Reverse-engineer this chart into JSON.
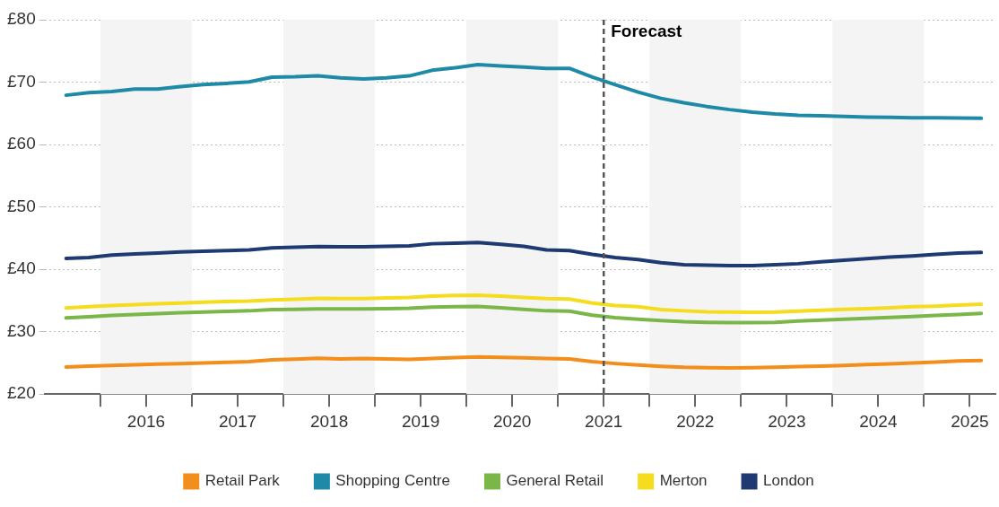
{
  "chart_data": {
    "type": "line",
    "x": [
      2015.625,
      2015.875,
      2016.125,
      2016.375,
      2016.625,
      2016.875,
      2017.125,
      2017.375,
      2017.625,
      2017.875,
      2018.125,
      2018.375,
      2018.625,
      2018.875,
      2019.125,
      2019.375,
      2019.625,
      2019.875,
      2020.125,
      2020.375,
      2020.625,
      2020.875,
      2021.125,
      2021.375,
      2021.625,
      2021.875,
      2022.125,
      2022.375,
      2022.625,
      2022.875,
      2023.125,
      2023.375,
      2023.625,
      2023.875,
      2024.125,
      2024.375,
      2024.625,
      2024.875,
      2025.125,
      2025.375,
      2025.625
    ],
    "series": [
      {
        "name": "Retail Park",
        "color": "#f28e1c",
        "values": [
          24.35,
          24.5,
          24.6,
          24.7,
          24.8,
          24.9,
          25.0,
          25.1,
          25.2,
          25.5,
          25.6,
          25.75,
          25.65,
          25.7,
          25.65,
          25.55,
          25.7,
          25.85,
          25.95,
          25.9,
          25.8,
          25.7,
          25.65,
          25.2,
          24.9,
          24.65,
          24.45,
          24.3,
          24.25,
          24.2,
          24.25,
          24.3,
          24.4,
          24.5,
          24.6,
          24.75,
          24.85,
          25.0,
          25.15,
          25.3,
          25.4
        ]
      },
      {
        "name": "Shopping Centre",
        "color": "#1f8aa8",
        "values": [
          67.9,
          68.3,
          68.5,
          68.9,
          68.9,
          69.3,
          69.6,
          69.8,
          70.05,
          70.8,
          70.85,
          71.0,
          70.7,
          70.5,
          70.7,
          71.0,
          71.9,
          72.3,
          72.8,
          72.6,
          72.4,
          72.2,
          72.2,
          70.8,
          69.6,
          68.4,
          67.4,
          66.7,
          66.1,
          65.6,
          65.2,
          64.9,
          64.7,
          64.6,
          64.5,
          64.4,
          64.35,
          64.3,
          64.3,
          64.25,
          64.2
        ]
      },
      {
        "name": "General Retail",
        "color": "#7ab648",
        "values": [
          32.2,
          32.4,
          32.6,
          32.75,
          32.9,
          33.05,
          33.15,
          33.25,
          33.35,
          33.55,
          33.6,
          33.65,
          33.65,
          33.65,
          33.7,
          33.75,
          33.95,
          34.0,
          34.05,
          33.85,
          33.6,
          33.35,
          33.3,
          32.65,
          32.25,
          32.0,
          31.8,
          31.6,
          31.5,
          31.45,
          31.45,
          31.5,
          31.7,
          31.85,
          32.0,
          32.15,
          32.3,
          32.45,
          32.6,
          32.75,
          32.95
        ]
      },
      {
        "name": "Merton",
        "color": "#f5dc1e",
        "values": [
          33.8,
          34.0,
          34.2,
          34.35,
          34.5,
          34.6,
          34.75,
          34.85,
          34.9,
          35.1,
          35.2,
          35.35,
          35.3,
          35.3,
          35.4,
          35.5,
          35.7,
          35.8,
          35.85,
          35.7,
          35.5,
          35.3,
          35.25,
          34.6,
          34.2,
          34.0,
          33.55,
          33.35,
          33.2,
          33.15,
          33.1,
          33.15,
          33.3,
          33.45,
          33.6,
          33.7,
          33.85,
          34.0,
          34.1,
          34.25,
          34.4
        ]
      },
      {
        "name": "London",
        "color": "#1f3a73",
        "values": [
          41.75,
          41.9,
          42.3,
          42.45,
          42.6,
          42.8,
          42.9,
          43.0,
          43.1,
          43.45,
          43.55,
          43.65,
          43.6,
          43.6,
          43.7,
          43.75,
          44.1,
          44.2,
          44.3,
          44.0,
          43.7,
          43.1,
          43.0,
          42.4,
          41.9,
          41.55,
          41.05,
          40.75,
          40.65,
          40.6,
          40.6,
          40.75,
          40.9,
          41.2,
          41.45,
          41.7,
          41.95,
          42.15,
          42.4,
          42.6,
          42.7
        ]
      }
    ],
    "xlim": [
      2015.39,
      2025.78
    ],
    "xticks": [
      {
        "value": 2016,
        "label": null
      },
      {
        "value": 2016.5,
        "label": "2016"
      },
      {
        "value": 2017,
        "label": null
      },
      {
        "value": 2017.5,
        "label": "2017"
      },
      {
        "value": 2018,
        "label": null
      },
      {
        "value": 2018.5,
        "label": "2018"
      },
      {
        "value": 2019,
        "label": null
      },
      {
        "value": 2019.5,
        "label": "2019"
      },
      {
        "value": 2020,
        "label": null
      },
      {
        "value": 2020.5,
        "label": "2020"
      },
      {
        "value": 2021,
        "label": null
      },
      {
        "value": 2021.5,
        "label": "2021"
      },
      {
        "value": 2022,
        "label": null
      },
      {
        "value": 2022.5,
        "label": "2022"
      },
      {
        "value": 2023,
        "label": null
      },
      {
        "value": 2023.5,
        "label": "2023"
      },
      {
        "value": 2024,
        "label": null
      },
      {
        "value": 2024.5,
        "label": "2024"
      },
      {
        "value": 2025,
        "label": null
      },
      {
        "value": 2025.5,
        "label": "2025"
      }
    ],
    "ylim": [
      20,
      80
    ],
    "yticks": [
      {
        "value": 20,
        "label": "£20"
      },
      {
        "value": 30,
        "label": "£30"
      },
      {
        "value": 40,
        "label": "£40"
      },
      {
        "value": 50,
        "label": "£50"
      },
      {
        "value": 60,
        "label": "£60"
      },
      {
        "value": 70,
        "label": "£70"
      },
      {
        "value": 80,
        "label": "£80"
      }
    ],
    "ref_lines": [
      {
        "axis": "x",
        "value": 2021.5,
        "label": "Forecast",
        "color": "#555555",
        "line_style": "dashed"
      }
    ],
    "bands": [
      {
        "axis": "x",
        "from": 2016,
        "to": 2017,
        "color": "#f4f4f4"
      },
      {
        "axis": "x",
        "from": 2018,
        "to": 2019,
        "color": "#f4f4f4"
      },
      {
        "axis": "x",
        "from": 2020,
        "to": 2021,
        "color": "#f4f4f4"
      },
      {
        "axis": "x",
        "from": 2022,
        "to": 2023,
        "color": "#f4f4f4"
      },
      {
        "axis": "x",
        "from": 2024,
        "to": 2025,
        "color": "#f4f4f4"
      }
    ],
    "grid": "y",
    "legend": "bottom",
    "marker": "none",
    "line_style": "solid"
  }
}
